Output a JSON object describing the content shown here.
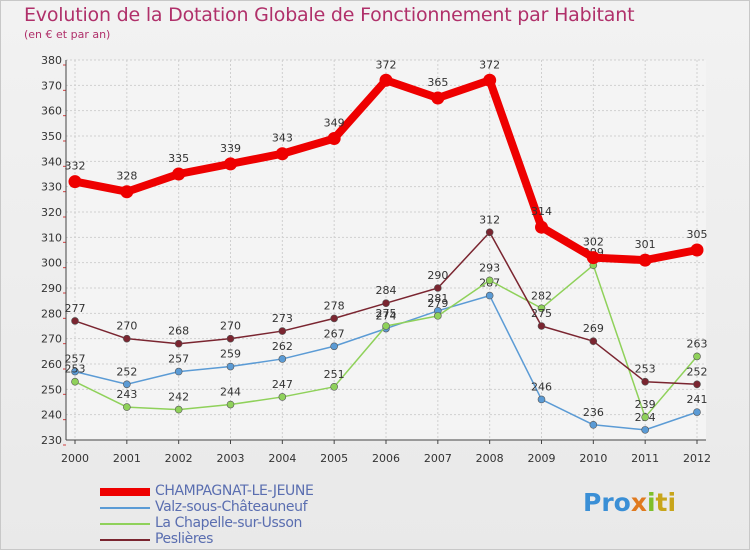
{
  "header": {
    "title": "Evolution de la Dotation Globale de Fonctionnement par Habitant",
    "subtitle": "(en € et par an)"
  },
  "logo": {
    "p1": "Pro",
    "p2": "x",
    "p3": "i",
    "p4": "ti"
  },
  "colors": {
    "title": "#b0306a",
    "legend_text": "#5a6eb0"
  },
  "chart_data": {
    "type": "line",
    "title": "Evolution de la Dotation Globale de Fonctionnement par Habitant",
    "subtitle": "(en € et par an)",
    "xlabel": "",
    "ylabel": "",
    "categories": [
      "2000",
      "2001",
      "2002",
      "2003",
      "2004",
      "2005",
      "2006",
      "2007",
      "2008",
      "2009",
      "2010",
      "2011",
      "2012"
    ],
    "ylim": [
      230,
      380
    ],
    "yticks": [
      230,
      240,
      250,
      260,
      270,
      280,
      290,
      300,
      310,
      320,
      330,
      340,
      350,
      360,
      370,
      380
    ],
    "grid": true,
    "legend_position": "bottom-left",
    "series": [
      {
        "name": "CHAMPAGNAT-LE-JEUNE",
        "color": "#ee0000",
        "width": "thick",
        "values": [
          332,
          328,
          335,
          339,
          343,
          349,
          372,
          365,
          372,
          314,
          302,
          301,
          305
        ]
      },
      {
        "name": "Valz-sous-Châteauneuf",
        "color": "#5b9bd5",
        "width": "thin",
        "values": [
          257,
          252,
          257,
          259,
          262,
          267,
          274,
          281,
          287,
          246,
          236,
          234,
          241
        ]
      },
      {
        "name": "La Chapelle-sur-Usson",
        "color": "#8fd15a",
        "width": "thin",
        "values": [
          253,
          243,
          242,
          244,
          247,
          251,
          275,
          279,
          293,
          282,
          299,
          239,
          263
        ]
      },
      {
        "name": "Peslières",
        "color": "#7a2530",
        "width": "thin",
        "values": [
          277,
          270,
          268,
          270,
          273,
          278,
          284,
          290,
          312,
          275,
          269,
          253,
          252
        ]
      }
    ]
  }
}
